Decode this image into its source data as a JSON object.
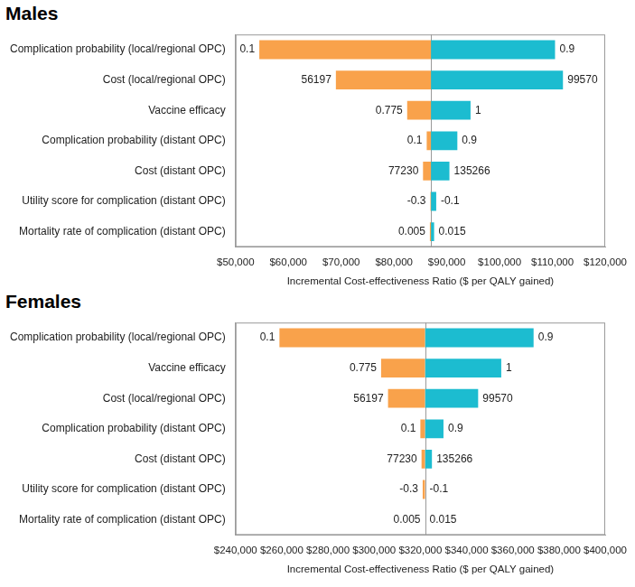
{
  "chart_data": [
    {
      "type": "bar",
      "orientation": "horizontal",
      "title": "Males",
      "x_label": "Incremental Cost-effectiveness Ratio ($ per QALY gained)",
      "categories": [
        "Complication probability (local/regional OPC)",
        "Cost (local/regional OPC)",
        "Vaccine efficacy",
        "Complication probability (distant OPC)",
        "Cost (distant OPC)",
        "Utility score for complication (distant OPC)",
        "Mortality rate of complication (distant OPC)"
      ],
      "baseline": 87000,
      "series": [
        {
          "color": "#f9a24b",
          "values": [
            54500,
            69000,
            82500,
            86200,
            85500,
            86900,
            86800
          ],
          "inputs": [
            0.1,
            56197,
            0.775,
            0.1,
            77230,
            -0.3,
            0.005
          ]
        },
        {
          "color": "#1cbcd0",
          "values": [
            110500,
            112000,
            94500,
            92000,
            90500,
            88000,
            87600
          ],
          "inputs": [
            0.9,
            99570,
            1,
            0.9,
            135266,
            -0.1,
            0.015
          ]
        }
      ],
      "xlim": [
        50000,
        120000
      ],
      "xticks": [
        {
          "value": 50000,
          "label": "$50,000"
        },
        {
          "value": 60000,
          "label": "$60,000"
        },
        {
          "value": 70000,
          "label": "$70,000"
        },
        {
          "value": 80000,
          "label": "$80,000"
        },
        {
          "value": 90000,
          "label": "$90,000"
        },
        {
          "value": 100000,
          "label": "$100,000"
        },
        {
          "value": 110000,
          "label": "$110,000"
        },
        {
          "value": 120000,
          "label": "$120,000"
        }
      ],
      "grid": false
    },
    {
      "type": "bar",
      "orientation": "horizontal",
      "title": "Females",
      "x_label": "Incremental Cost-effectiveness Ratio ($ per QALY gained)",
      "categories": [
        "Complication probability (local/regional OPC)",
        "Vaccine efficacy",
        "Cost (local/regional OPC)",
        "Complication probability (distant OPC)",
        "Cost (distant OPC)",
        "Utility score for complication (distant OPC)",
        "Mortality rate of complication (distant OPC)"
      ],
      "baseline": 322000,
      "series": [
        {
          "color": "#f9a24b",
          "values": [
            259000,
            303000,
            306000,
            320000,
            320500,
            321000,
            322000
          ],
          "inputs": [
            0.1,
            0.775,
            56197,
            0.1,
            77230,
            -0.3,
            0.005
          ]
        },
        {
          "color": "#1cbcd0",
          "values": [
            369000,
            355000,
            345000,
            330000,
            325000,
            322000,
            322000
          ],
          "inputs": [
            0.9,
            1,
            99570,
            0.9,
            135266,
            -0.1,
            0.015
          ]
        }
      ],
      "xlim": [
        240000,
        400000
      ],
      "xticks": [
        {
          "value": 240000,
          "label": "$240,000"
        },
        {
          "value": 260000,
          "label": "$260,000"
        },
        {
          "value": 280000,
          "label": "$280,000"
        },
        {
          "value": 300000,
          "label": "$300,000"
        },
        {
          "value": 320000,
          "label": "$320,000"
        },
        {
          "value": 340000,
          "label": "$340,000"
        },
        {
          "value": 360000,
          "label": "$360,000"
        },
        {
          "value": 380000,
          "label": "$380,000"
        },
        {
          "value": 400000,
          "label": "$400,000"
        }
      ],
      "grid": false
    }
  ]
}
